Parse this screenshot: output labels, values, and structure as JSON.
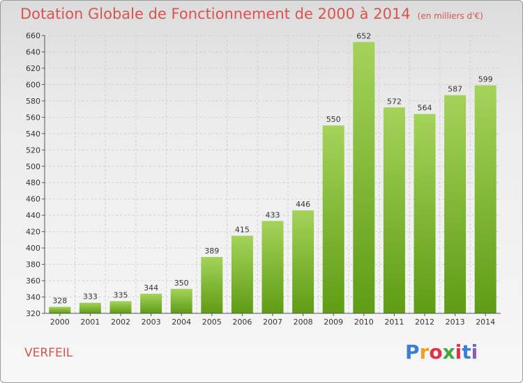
{
  "title": "Dotation Globale de Fonctionnement de 2000 à 2014",
  "subtitle": "(en milliers d'€)",
  "commune": "VERFEIL",
  "logo": {
    "text": "Proxiti",
    "colors": [
      "#3a7fd5",
      "#f0a020",
      "#e0304a",
      "#3fa83f",
      "#e0304a",
      "#3a7fd5",
      "#8a5cc2"
    ]
  },
  "colors": {
    "bar_top": "#a4d35a",
    "bar_bottom": "#5f9c15",
    "title": "#d9534f"
  },
  "chart_data": {
    "type": "bar",
    "title": "Dotation Globale de Fonctionnement de 2000 à 2014",
    "subtitle": "(en milliers d'€)",
    "xlabel": "",
    "ylabel": "",
    "categories": [
      "2000",
      "2001",
      "2002",
      "2003",
      "2004",
      "2005",
      "2006",
      "2007",
      "2008",
      "2009",
      "2010",
      "2011",
      "2012",
      "2013",
      "2014"
    ],
    "values": [
      328,
      333,
      335,
      344,
      350,
      389,
      415,
      433,
      446,
      550,
      652,
      572,
      564,
      587,
      599
    ],
    "ylim": [
      320,
      660
    ],
    "yticks": [
      320,
      340,
      360,
      380,
      400,
      420,
      440,
      460,
      480,
      500,
      520,
      540,
      560,
      580,
      600,
      620,
      640,
      660
    ],
    "grid": true,
    "legend": "none"
  }
}
